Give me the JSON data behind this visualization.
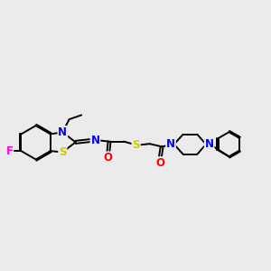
{
  "background_color": "#ebebeb",
  "figsize": [
    3.0,
    3.0
  ],
  "dpi": 100,
  "atom_colors": {
    "C": "#000000",
    "N": "#0000ff",
    "O": "#ff0000",
    "S": "#cccc00",
    "F": "#ff00ff"
  },
  "bond_width": 1.4,
  "font_size": 8.5
}
